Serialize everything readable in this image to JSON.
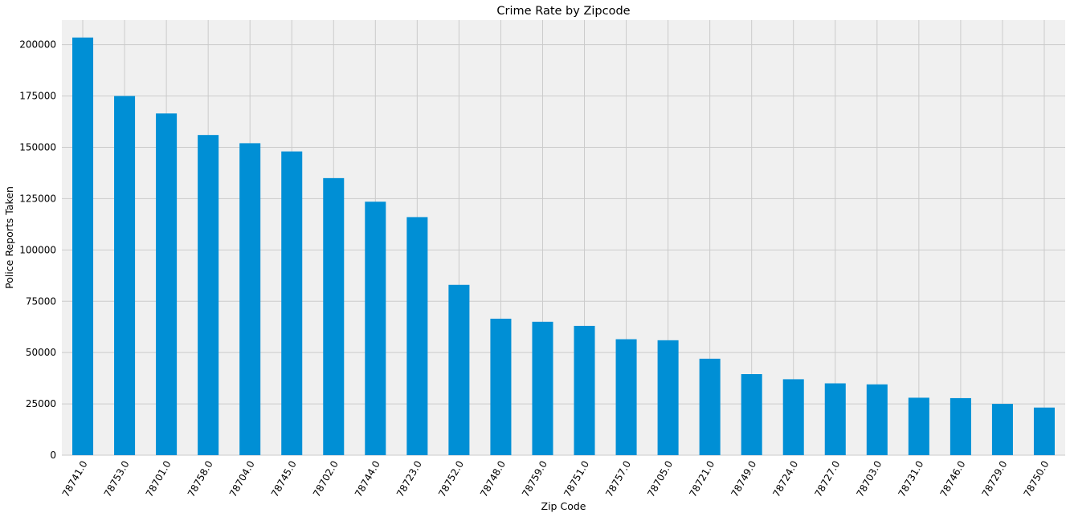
{
  "chart_data": {
    "type": "bar",
    "title": "Crime Rate by Zipcode",
    "xlabel": "Zip Code",
    "ylabel": "Police Reports Taken",
    "categories": [
      "78741.0",
      "78753.0",
      "78701.0",
      "78758.0",
      "78704.0",
      "78745.0",
      "78702.0",
      "78744.0",
      "78723.0",
      "78752.0",
      "78748.0",
      "78759.0",
      "78751.0",
      "78757.0",
      "78705.0",
      "78721.0",
      "78749.0",
      "78724.0",
      "78727.0",
      "78703.0",
      "78731.0",
      "78746.0",
      "78729.0",
      "78750.0"
    ],
    "values": [
      203500,
      175000,
      166500,
      156000,
      152000,
      148000,
      135000,
      123500,
      116000,
      83000,
      66500,
      65000,
      63000,
      56500,
      56000,
      47000,
      39500,
      37000,
      35000,
      34500,
      28000,
      27800,
      25000,
      23200
    ],
    "yticks": [
      0,
      25000,
      50000,
      75000,
      100000,
      125000,
      150000,
      175000,
      200000
    ],
    "ylim": [
      0,
      212000
    ],
    "grid": true,
    "colors": {
      "bar": "#008fd5",
      "background": "#f0f0f0",
      "grid": "#cbcbcb"
    }
  }
}
